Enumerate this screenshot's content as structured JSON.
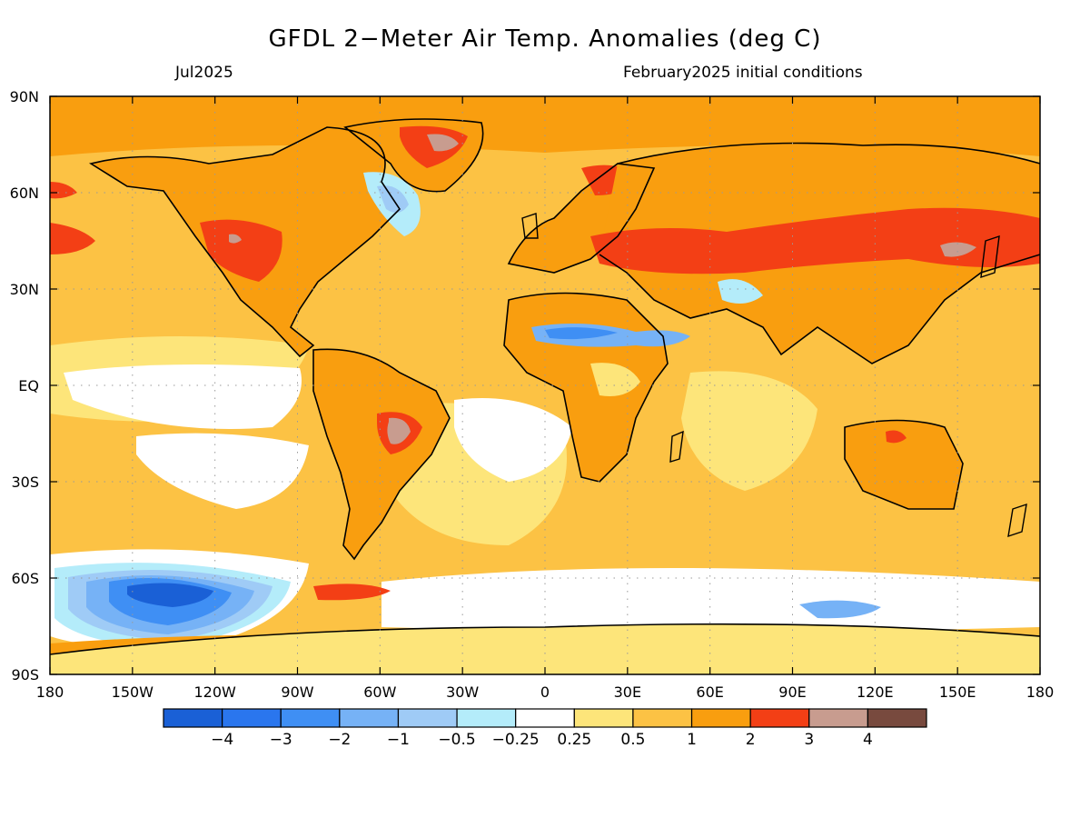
{
  "title": "GFDL 2−Meter Air Temp. Anomalies (deg C)",
  "month_label": "Jul2025",
  "init_label": "February2025 initial conditions",
  "lat_labels": [
    "90N",
    "60N",
    "30N",
    "EQ",
    "30S",
    "60S",
    "90S"
  ],
  "lon_labels": [
    "180",
    "150W",
    "120W",
    "90W",
    "60W",
    "30W",
    "0",
    "30E",
    "60E",
    "90E",
    "120E",
    "150E",
    "180"
  ],
  "colorbar": {
    "colors": [
      "#1a60d6",
      "#2a76ee",
      "#3f8ff4",
      "#76b2f6",
      "#9fcbf6",
      "#b4ecfa",
      "#ffffff",
      "#fde57a",
      "#fcc244",
      "#f99e0f",
      "#f33f15",
      "#c89c8f",
      "#784a3e"
    ],
    "labels": [
      "−4",
      "−3",
      "−2",
      "−1",
      "−0.5",
      "−0.25",
      "0.25",
      "0.5",
      "1",
      "2",
      "3",
      "4"
    ]
  },
  "map_colors": {
    "ocean_base": "#fcc244",
    "land_base": "#f99e0f",
    "warm_strong": "#f33f15",
    "warm_extreme": "#c89c8f",
    "near_zero": "#ffffff",
    "cool_weak": "#b4ecfa",
    "cool_mod": "#9fcbf6",
    "cool_light": "#76b2f6",
    "cool_med": "#3f8ff4",
    "cool_deep": "#2a76ee",
    "cool_extreme": "#1a60d6",
    "mild": "#fde57a",
    "coastline": "#000000"
  }
}
